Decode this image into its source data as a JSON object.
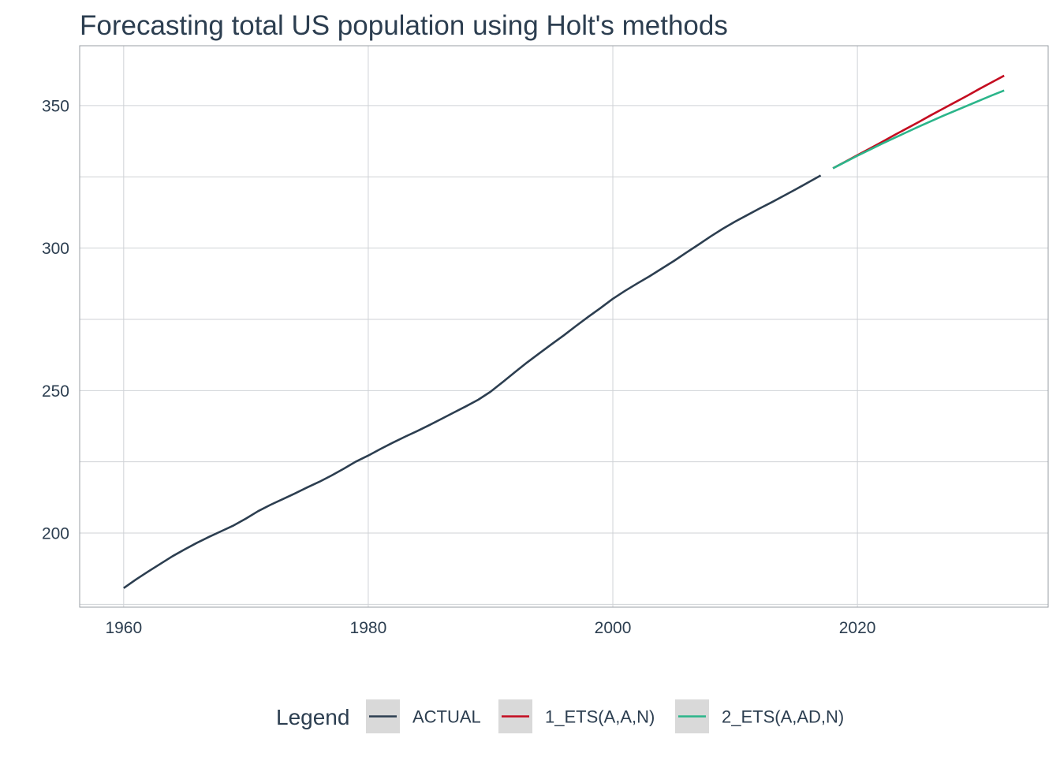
{
  "chart_data": {
    "type": "line",
    "title": "Forecasting total US population using Holt's methods",
    "xlabel": "",
    "ylabel": "",
    "xlim": [
      1956.4,
      2035.6
    ],
    "ylim": [
      174,
      371
    ],
    "x_ticks": [
      1960,
      1980,
      2000,
      2020
    ],
    "y_ticks": [
      200,
      250,
      300,
      350
    ],
    "grid": true,
    "legend": {
      "title": "Legend",
      "position": "bottom"
    },
    "series": [
      {
        "name": "ACTUAL",
        "color": "#2c3e50",
        "x": [
          1960,
          1961,
          1962,
          1963,
          1964,
          1965,
          1966,
          1967,
          1968,
          1969,
          1970,
          1971,
          1972,
          1973,
          1974,
          1975,
          1976,
          1977,
          1978,
          1979,
          1980,
          1981,
          1982,
          1983,
          1984,
          1985,
          1986,
          1987,
          1988,
          1989,
          1990,
          1991,
          1992,
          1993,
          1994,
          1995,
          1996,
          1997,
          1998,
          1999,
          2000,
          2001,
          2002,
          2003,
          2004,
          2005,
          2006,
          2007,
          2008,
          2009,
          2010,
          2011,
          2012,
          2013,
          2014,
          2015,
          2016,
          2017
        ],
        "y": [
          180.7,
          183.7,
          186.5,
          189.2,
          191.9,
          194.3,
          196.6,
          198.7,
          200.7,
          202.7,
          205.1,
          207.7,
          209.9,
          211.9,
          213.9,
          216.0,
          218.0,
          220.2,
          222.6,
          225.1,
          227.2,
          229.5,
          231.7,
          233.8,
          235.8,
          237.9,
          240.1,
          242.3,
          244.5,
          246.8,
          249.6,
          253.0,
          256.5,
          259.9,
          263.1,
          266.3,
          269.4,
          272.7,
          275.9,
          279.0,
          282.2,
          285.0,
          287.6,
          290.1,
          292.8,
          295.5,
          298.4,
          301.2,
          304.1,
          306.8,
          309.3,
          311.6,
          313.9,
          316.1,
          318.4,
          320.7,
          323.1,
          325.5
        ]
      },
      {
        "name": "1_ETS(A,A,N)",
        "color": "#c40c20",
        "x": [
          2018,
          2019,
          2020,
          2021,
          2022,
          2023,
          2024,
          2025,
          2026,
          2027,
          2028,
          2029,
          2030,
          2031,
          2032
        ],
        "y": [
          328.0,
          330.3,
          332.6,
          334.9,
          337.2,
          339.6,
          341.9,
          344.2,
          346.6,
          348.9,
          351.2,
          353.5,
          355.9,
          358.2,
          360.5
        ]
      },
      {
        "name": "2_ETS(A,AD,N)",
        "color": "#2bb58a",
        "x": [
          2018,
          2019,
          2020,
          2021,
          2022,
          2023,
          2024,
          2025,
          2026,
          2027,
          2028,
          2029,
          2030,
          2031,
          2032
        ],
        "y": [
          328.0,
          330.2,
          332.4,
          334.5,
          336.6,
          338.6,
          340.6,
          342.6,
          344.5,
          346.4,
          348.2,
          350.0,
          351.8,
          353.6,
          355.3
        ]
      }
    ]
  }
}
